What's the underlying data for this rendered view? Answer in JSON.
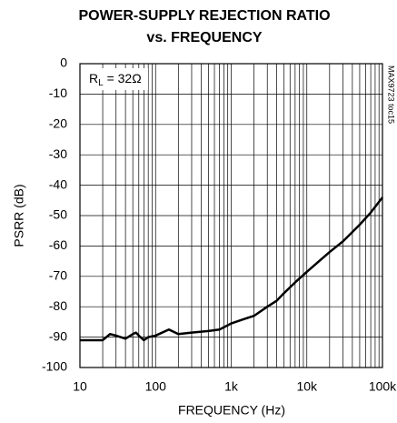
{
  "chart_data": {
    "type": "line",
    "title": [
      "POWER-SUPPLY REJECTION RATIO",
      "vs. FREQUENCY"
    ],
    "xlabel": "FREQUENCY (Hz)",
    "ylabel": "PSRR (dB)",
    "annotation": [
      "R",
      "L",
      " = 32Ω"
    ],
    "side_note": "MAX9723 toc15",
    "xscale": "log",
    "grid": true,
    "color": "#000000",
    "xlim": [
      10,
      100000
    ],
    "ylim": [
      -100,
      0
    ],
    "xticks": [
      {
        "value": 10,
        "label": "10"
      },
      {
        "value": 100,
        "label": "100"
      },
      {
        "value": 1000,
        "label": "1k"
      },
      {
        "value": 10000,
        "label": "10k"
      },
      {
        "value": 100000,
        "label": "100k"
      }
    ],
    "yticks": [
      0,
      -10,
      -20,
      -30,
      -40,
      -50,
      -60,
      -70,
      -80,
      -90,
      -100
    ],
    "x": [
      10,
      20,
      25,
      30,
      40,
      50,
      55,
      60,
      70,
      80,
      100,
      150,
      200,
      300,
      500,
      700,
      1000,
      1500,
      2000,
      3000,
      4000,
      5000,
      7000,
      10000,
      20000,
      30000,
      50000,
      70000,
      100000
    ],
    "values": [
      -91,
      -91,
      -89,
      -89.5,
      -90.5,
      -89,
      -88.5,
      -89.5,
      -91,
      -90,
      -89.5,
      -87.5,
      -89,
      -88.5,
      -88,
      -87.5,
      -85.5,
      -84,
      -83,
      -80,
      -78,
      -75.5,
      -72,
      -68.5,
      -62,
      -58.5,
      -53,
      -49,
      -44
    ]
  }
}
